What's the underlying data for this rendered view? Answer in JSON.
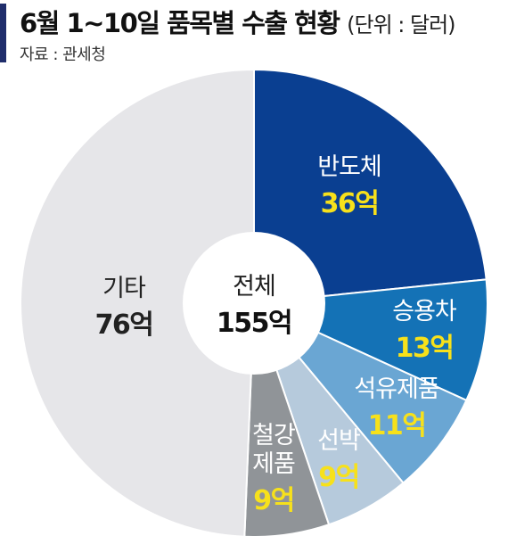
{
  "header": {
    "title": "6월 1~10일 품목별 수출 현황",
    "unit": "(단위 : 달러)",
    "source": "자료 : 관세청"
  },
  "colors": {
    "title_bar": "#1f2d6b",
    "highlight_value": "#f7e11b"
  },
  "chart_data": {
    "type": "pie",
    "variant": "donut",
    "center_label": "전체",
    "center_value": "155억",
    "total": 155,
    "slices": [
      {
        "label": "반도체",
        "value": 36,
        "value_label": "36억",
        "color": "#0a3f91",
        "text_color": "#ffffff",
        "value_color": "#f7e11b"
      },
      {
        "label": "승용차",
        "value": 13,
        "value_label": "13억",
        "color": "#1472b6",
        "text_color": "#ffffff",
        "value_color": "#f7e11b"
      },
      {
        "label": "석유제품",
        "value": 11,
        "value_label": "11억",
        "color": "#6aa6d3",
        "text_color": "#ffffff",
        "value_color": "#f7e11b"
      },
      {
        "label": "선박",
        "value": 9,
        "value_label": "9억",
        "color": "#b6cadc",
        "text_color": "#ffffff",
        "value_color": "#f7e11b"
      },
      {
        "label": "철강\n제품",
        "value": 9,
        "value_label": "9억",
        "color": "#909498",
        "text_color": "#ffffff",
        "value_color": "#f7e11b"
      },
      {
        "label": "기타",
        "value": 76,
        "value_label": "76억",
        "color": "#e6e6e9",
        "text_color": "#222222",
        "value_color": "#222222"
      }
    ]
  }
}
